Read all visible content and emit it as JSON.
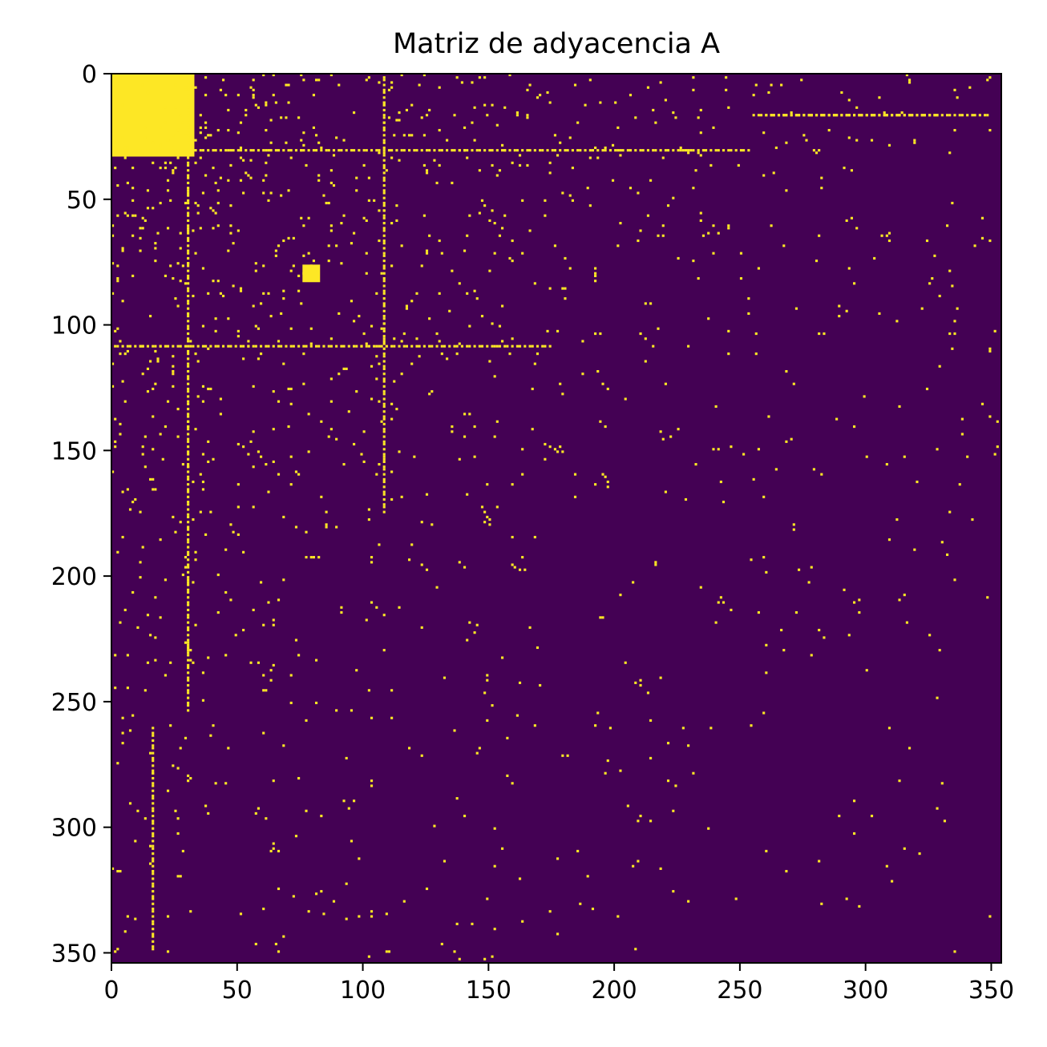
{
  "chart_data": {
    "type": "heatmap",
    "title": "Matriz de adyacencia A",
    "xlabel": "",
    "ylabel": "",
    "n": 354,
    "xlim": [
      0,
      354
    ],
    "ylim": [
      354,
      0
    ],
    "x_ticks": [
      0,
      50,
      100,
      150,
      200,
      250,
      300,
      350
    ],
    "y_ticks": [
      0,
      50,
      100,
      150,
      200,
      250,
      300,
      350
    ],
    "colormap": "viridis",
    "value_colors": {
      "0": "#440154",
      "1": "#fde725"
    },
    "grid": false,
    "legend": "none",
    "dense_blocks": [
      {
        "rows": [
          0,
          33
        ],
        "cols": [
          0,
          33
        ]
      },
      {
        "rows": [
          76,
          83
        ],
        "cols": [
          76,
          83
        ]
      }
    ],
    "dense_lines": [
      {
        "row": 30,
        "cols": [
          0,
          255
        ]
      },
      {
        "row": 108,
        "cols": [
          0,
          175
        ]
      },
      {
        "col": 30,
        "rows": [
          0,
          255
        ]
      },
      {
        "col": 108,
        "rows": [
          0,
          175
        ]
      },
      {
        "col": 16,
        "rows": [
          260,
          350
        ]
      },
      {
        "row": 16,
        "cols": [
          260,
          350
        ]
      },
      {
        "row": 16,
        "cols": [
          255,
          330
        ]
      },
      {
        "col": 192,
        "rows": [
          76,
          83
        ]
      },
      {
        "row": 192,
        "cols": [
          76,
          83
        ]
      }
    ],
    "sparse_edges_note_density": 0.018
  }
}
